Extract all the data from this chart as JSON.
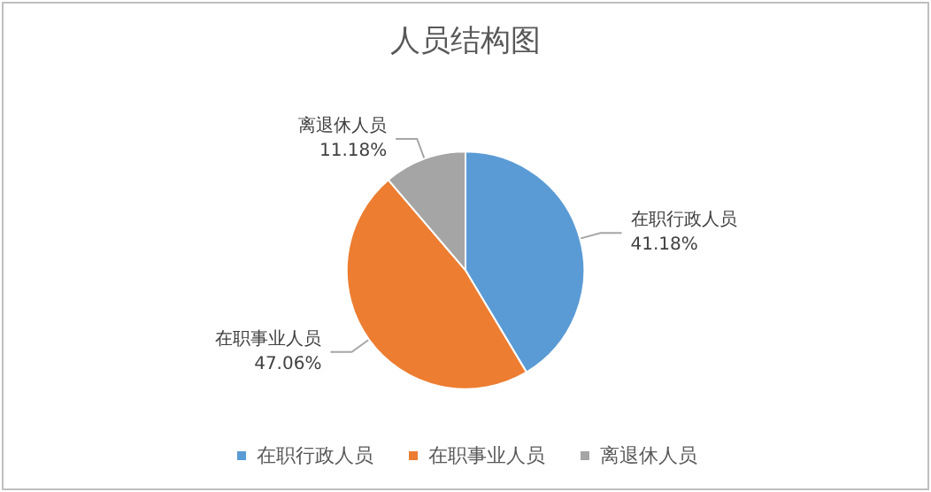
{
  "chart_data": {
    "type": "pie",
    "title": "人员结构图",
    "categories": [
      "在职行政人员",
      "在职事业人员",
      "离退休人员"
    ],
    "values": [
      41.18,
      47.06,
      11.18
    ],
    "colors": [
      "#5b9bd5",
      "#ed7d31",
      "#a5a5a5"
    ],
    "value_labels": [
      "41.18%",
      "47.06%",
      "11.18%"
    ],
    "legend": "bottom"
  }
}
